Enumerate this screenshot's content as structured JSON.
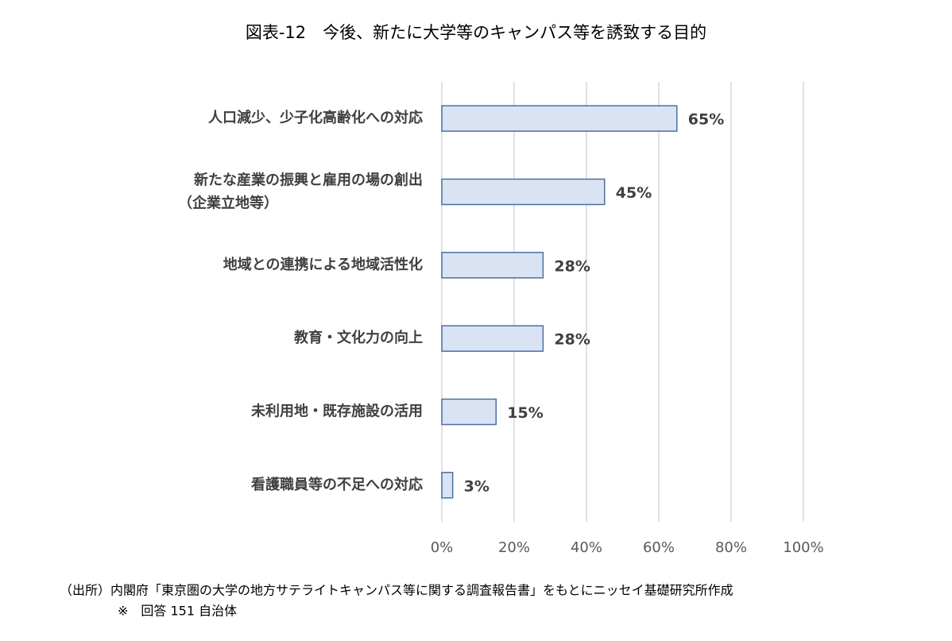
{
  "chart_data": {
    "type": "bar",
    "orientation": "horizontal",
    "title": "図表-12　今後、新たに大学等のキャンパス等を誘致する目的",
    "categories": [
      "人口減少、少子化高齢化への対応",
      [
        "新たな産業の振興と雇用の場の創出",
        "（企業立地等）"
      ],
      "地域との連携による地域活性化",
      "教育・文化力の向上",
      "未利用地・既存施設の活用",
      "看護職員等の不足への対応"
    ],
    "values": [
      65,
      45,
      28,
      28,
      15,
      3
    ],
    "value_labels": [
      "65%",
      "45%",
      "28%",
      "28%",
      "15%",
      "3%"
    ],
    "color": "#dae3f3",
    "edge_color": "#4a6fa5",
    "xlim": [
      0,
      100
    ],
    "xticks": [
      {
        "value": 0,
        "label": "0%"
      },
      {
        "value": 20,
        "label": "20%"
      },
      {
        "value": 40,
        "label": "40%"
      },
      {
        "value": 60,
        "label": "60%"
      },
      {
        "value": 80,
        "label": "80%"
      },
      {
        "value": 100,
        "label": "100%"
      }
    ],
    "grid": true,
    "notes": [
      "（出所）内閣府「東京圏の大学の地方サテライトキャンパス等に関する調査報告書」をもとにニッセイ基礎研究所作成",
      "※　回答 151 自治体"
    ]
  }
}
